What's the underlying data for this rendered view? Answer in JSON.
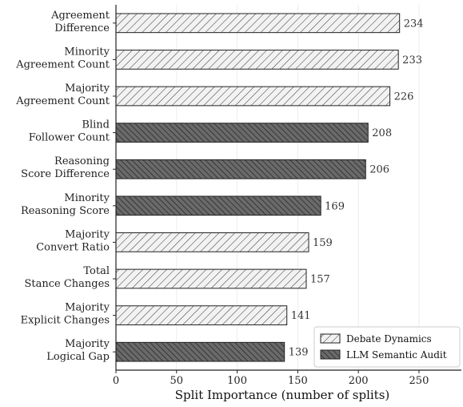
{
  "chart_data": {
    "type": "bar",
    "orientation": "horizontal",
    "categories": [
      [
        "Agreement",
        "Difference"
      ],
      [
        "Minority",
        "Agreement Count"
      ],
      [
        "Majority",
        "Agreement Count"
      ],
      [
        "Blind",
        "Follower Count"
      ],
      [
        "Reasoning",
        "Score Difference"
      ],
      [
        "Minority",
        "Reasoning Score"
      ],
      [
        "Majority",
        "Convert Ratio"
      ],
      [
        "Total",
        "Stance Changes"
      ],
      [
        "Majority",
        "Explicit Changes"
      ],
      [
        "Majority",
        "Logical Gap"
      ]
    ],
    "values": [
      234,
      233,
      226,
      208,
      206,
      169,
      159,
      157,
      141,
      139
    ],
    "groups": [
      "Debate Dynamics",
      "Debate Dynamics",
      "Debate Dynamics",
      "LLM Semantic Audit",
      "LLM Semantic Audit",
      "LLM Semantic Audit",
      "Debate Dynamics",
      "Debate Dynamics",
      "Debate Dynamics",
      "LLM Semantic Audit"
    ],
    "series": [
      {
        "name": "Debate Dynamics",
        "color": "#f2f2f2",
        "hatch": "light-diagonal"
      },
      {
        "name": "LLM Semantic Audit",
        "color": "#555555",
        "hatch": "dark-diagonal"
      }
    ],
    "xlabel": "Split Importance (number of splits)",
    "ylabel": "",
    "title": "",
    "xlim": [
      0,
      285
    ],
    "xticks": [
      0,
      50,
      100,
      150,
      200,
      250
    ],
    "grid": "vertical",
    "legend_position": "bottom-right"
  }
}
